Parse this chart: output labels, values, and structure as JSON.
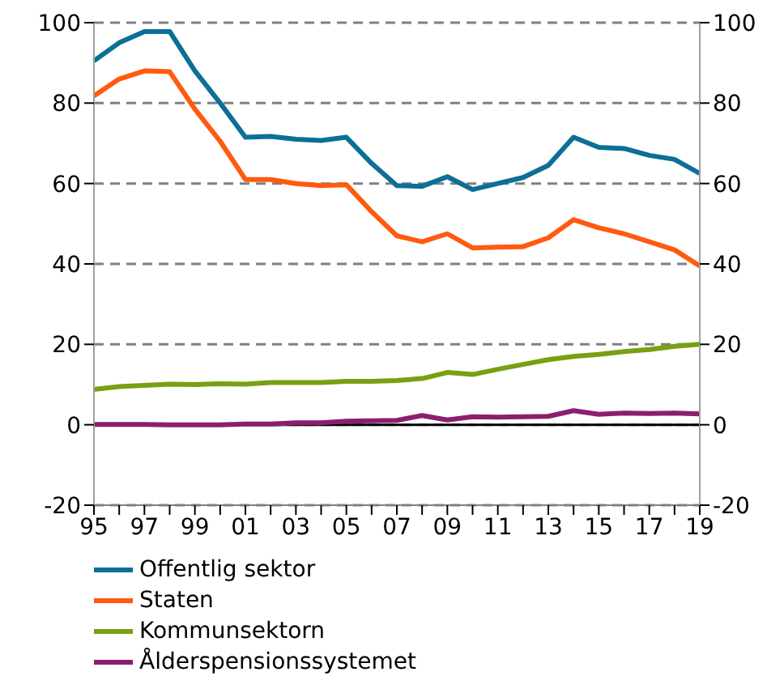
{
  "chart_data": {
    "type": "line",
    "categories": [
      "95",
      null,
      "97",
      null,
      "99",
      null,
      "01",
      null,
      "03",
      null,
      "05",
      null,
      "07",
      null,
      "09",
      null,
      "11",
      null,
      "13",
      null,
      "15",
      null,
      "17",
      null,
      "19"
    ],
    "series": [
      {
        "name": "Offentlig sektor",
        "color": "#0c6f96",
        "values": [
          90.5,
          95,
          97.8,
          97.8,
          88,
          80,
          71.5,
          71.7,
          71,
          70.7,
          71.5,
          65,
          59.5,
          59.3,
          61.7,
          58.5,
          60,
          61.5,
          64.5,
          71.5,
          69,
          68.7,
          67,
          66,
          62.5
        ]
      },
      {
        "name": "Staten",
        "color": "#ff5a0f",
        "values": [
          81.8,
          86,
          88,
          87.8,
          78.5,
          70.5,
          61,
          61,
          60,
          59.5,
          59.7,
          53,
          47,
          45.5,
          47.5,
          44,
          44.2,
          44.3,
          46.5,
          51,
          49,
          47.5,
          45.5,
          43.5,
          39.5
        ]
      },
      {
        "name": "Kommunsektorn",
        "color": "#78a010",
        "values": [
          8.8,
          9.5,
          9.8,
          10.1,
          10,
          10.2,
          10.1,
          10.5,
          10.5,
          10.5,
          10.8,
          10.8,
          11,
          11.5,
          13,
          12.5,
          13.8,
          15,
          16.2,
          17,
          17.5,
          18.2,
          18.7,
          19.5,
          20
        ]
      },
      {
        "name": "Ålderspensionssystemet",
        "color": "#8c1e6e",
        "values": [
          0.1,
          0.1,
          0.1,
          0,
          0,
          0,
          0.2,
          0.2,
          0.5,
          0.5,
          0.9,
          1,
          1.1,
          2.3,
          1.2,
          2,
          1.9,
          2,
          2.1,
          3.5,
          2.6,
          2.9,
          2.8,
          2.9,
          2.7
        ]
      }
    ],
    "ylim": [
      -20,
      100
    ],
    "yticks": [
      -20,
      0,
      20,
      40,
      60,
      80,
      100
    ],
    "y2lim": [
      -20,
      100
    ],
    "y2ticks": [
      -20,
      0,
      20,
      40,
      60,
      80,
      100
    ],
    "ref_lines": [
      {
        "axis": "y",
        "value": 0,
        "color": "#000000"
      }
    ],
    "grid": "y",
    "legend": "bottom left",
    "line_style": "solid",
    "marker": "none"
  }
}
